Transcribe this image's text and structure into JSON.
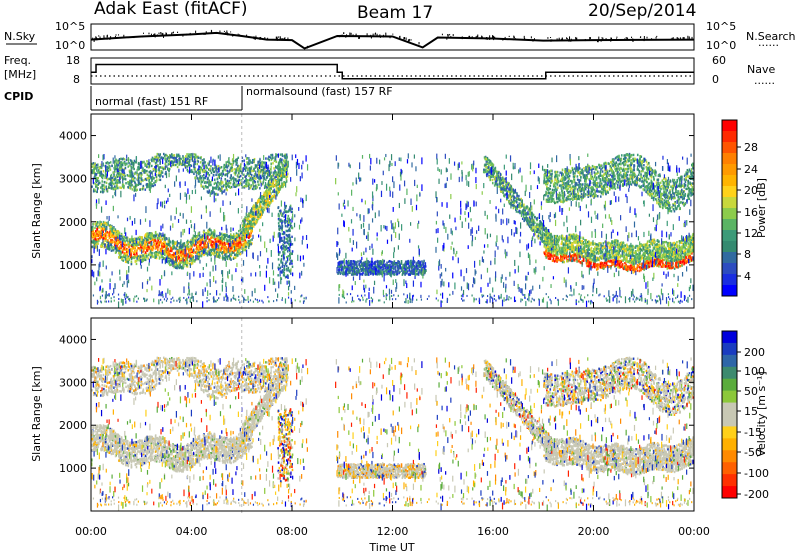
{
  "header": {
    "station": "Adak East (fitACF)",
    "beam": "Beam 17",
    "date": "20/Sep/2014"
  },
  "legend_labels": {
    "nsky": "N.Sky",
    "nsearch": "N.Search",
    "freq": "Freq.",
    "mhz": "[MHz]",
    "nave": "Nave",
    "cpid": "CPID",
    "dots": "......"
  },
  "nsky_axis": {
    "top": "10^5",
    "bottom": "10^0"
  },
  "freq_axis": {
    "top": "18",
    "bottom": "8"
  },
  "nave_axis": {
    "top": "60",
    "bottom": "0"
  },
  "cpid_segments": [
    {
      "label": "normal (fast) 151 RF",
      "start_hour": 0,
      "end_hour": 6
    },
    {
      "label": "normalsound (fast) 157 RF",
      "start_hour": 6,
      "end_hour": 24
    }
  ],
  "chart_data": [
    {
      "type": "heatmap",
      "panel": "power",
      "xlabel": "",
      "ylabel": "Slant Range [km]",
      "xlim": [
        0,
        24
      ],
      "ylim": [
        0,
        4500
      ],
      "y_ticks": [
        1000,
        2000,
        3000,
        4000
      ],
      "colorbar": {
        "label": "Power [dB]",
        "range": [
          0,
          30
        ],
        "ticks": [
          "4",
          "8",
          "12",
          "16",
          "20",
          "24",
          "28"
        ]
      },
      "features": [
        {
          "name": "",
          "time_range": [
            0,
            6.5
          ],
          "range_km": [
            1300,
            2100
          ]
        },
        {
          "name": "",
          "time_range": [
            18,
            24
          ],
          "range_km": [
            1200,
            1800
          ]
        },
        {
          "name": "",
          "time_range": [
            0,
            8
          ],
          "range_km": [
            2500,
            3500
          ]
        },
        {
          "name": "",
          "time_range": [
            18,
            24
          ],
          "range_km": [
            2500,
            3500
          ]
        },
        {
          "name": "",
          "time_range": [
            9.8,
            13.3
          ],
          "range_km": [
            750,
            1100
          ]
        }
      ]
    },
    {
      "type": "heatmap",
      "panel": "velocity",
      "xlabel": "Time UT",
      "ylabel": "Slant Range [km]",
      "xlim": [
        0,
        24
      ],
      "ylim": [
        0,
        4500
      ],
      "x_ticks": [
        "00:00",
        "04:00",
        "08:00",
        "12:00",
        "16:00",
        "20:00",
        "00:00"
      ],
      "y_ticks": [
        1000,
        2000,
        3000,
        4000
      ],
      "colorbar": {
        "label": "Velocity [m s⁻¹]",
        "range": [
          -250,
          250
        ],
        "ticks": [
          "200",
          "100",
          "50",
          "15",
          "-15",
          "-50",
          "-100",
          "-200"
        ]
      }
    },
    {
      "type": "line",
      "panel": "nsky",
      "series": [
        {
          "name": "",
          "x": [
            0,
            2,
            4,
            5,
            6,
            7,
            8,
            8.5,
            9.8,
            12,
            13.2,
            13.8,
            16,
            18,
            20,
            24
          ],
          "y": [
            2.0,
            2.6,
            3.0,
            3.3,
            2.7,
            2.0,
            1.9,
            0.3,
            2.7,
            2.6,
            0.5,
            2.4,
            2.2,
            1.8,
            1.9,
            2.0
          ]
        }
      ]
    },
    {
      "type": "line",
      "panel": "freq",
      "series": [
        {
          "name": "",
          "x": [
            0,
            0.2,
            8.6,
            9.8,
            10.0,
            13.6,
            13.9,
            18.0,
            18.1,
            24
          ],
          "y": [
            12.5,
            15.5,
            15.5,
            12.5,
            10.0,
            10.0,
            10.0,
            10.0,
            12.5,
            12.5
          ]
        }
      ]
    }
  ]
}
